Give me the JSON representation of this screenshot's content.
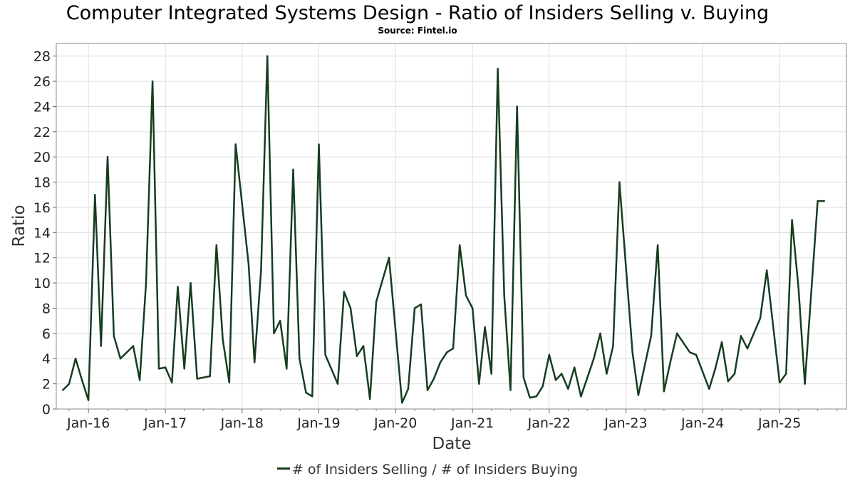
{
  "title": "Computer Integrated Systems Design - Ratio of Insiders Selling v. Buying",
  "subtitle": "Source: Fintel.io",
  "legend": {
    "label": "# of Insiders Selling / # of Insiders Buying",
    "color": "#163d20"
  },
  "chart_data": {
    "type": "line",
    "title": "Computer Integrated Systems Design - Ratio of Insiders Selling v. Buying",
    "subtitle": "Source: Fintel.io",
    "xlabel": "Date",
    "ylabel": "Ratio",
    "ylim": [
      0,
      29
    ],
    "yticks": [
      0,
      2,
      4,
      6,
      8,
      10,
      12,
      14,
      16,
      18,
      20,
      22,
      24,
      26,
      28
    ],
    "xlim": [
      "2015-08-01",
      "2025-11-15"
    ],
    "xticks": [
      {
        "label": "Jan-16",
        "date": "2016-01-01"
      },
      {
        "label": "Jan-17",
        "date": "2017-01-01"
      },
      {
        "label": "Jan-18",
        "date": "2018-01-01"
      },
      {
        "label": "Jan-19",
        "date": "2019-01-01"
      },
      {
        "label": "Jan-20",
        "date": "2020-01-01"
      },
      {
        "label": "Jan-21",
        "date": "2021-01-01"
      },
      {
        "label": "Jan-22",
        "date": "2022-01-01"
      },
      {
        "label": "Jan-23",
        "date": "2023-01-01"
      },
      {
        "label": "Jan-24",
        "date": "2024-01-01"
      },
      {
        "label": "Jan-25",
        "date": "2025-01-01"
      }
    ],
    "grid": true,
    "legend_position": "bottom",
    "series": [
      {
        "name": "# of Insiders Selling / # of Insiders Buying",
        "color": "#163d20",
        "x": [
          "2015-09-01",
          "2015-10-01",
          "2015-11-01",
          "2015-12-01",
          "2016-01-01",
          "2016-02-01",
          "2016-03-01",
          "2016-04-01",
          "2016-05-01",
          "2016-06-01",
          "2016-08-01",
          "2016-09-01",
          "2016-10-01",
          "2016-11-01",
          "2016-12-01",
          "2017-01-01",
          "2017-02-01",
          "2017-03-01",
          "2017-04-01",
          "2017-05-01",
          "2017-06-01",
          "2017-08-01",
          "2017-09-01",
          "2017-10-01",
          "2017-11-01",
          "2017-12-01",
          "2018-02-01",
          "2018-03-01",
          "2018-04-01",
          "2018-05-01",
          "2018-06-01",
          "2018-07-01",
          "2018-08-01",
          "2018-09-01",
          "2018-10-01",
          "2018-11-01",
          "2018-12-01",
          "2019-01-01",
          "2019-02-01",
          "2019-04-01",
          "2019-05-01",
          "2019-06-01",
          "2019-07-01",
          "2019-08-01",
          "2019-09-01",
          "2019-10-01",
          "2019-12-01",
          "2020-02-01",
          "2020-03-01",
          "2020-04-01",
          "2020-05-01",
          "2020-06-01",
          "2020-07-01",
          "2020-08-01",
          "2020-09-01",
          "2020-10-01",
          "2020-11-01",
          "2020-12-01",
          "2021-01-01",
          "2021-02-01",
          "2021-03-01",
          "2021-04-01",
          "2021-05-01",
          "2021-06-01",
          "2021-07-01",
          "2021-08-01",
          "2021-09-01",
          "2021-10-01",
          "2021-11-01",
          "2021-12-01",
          "2022-01-01",
          "2022-02-01",
          "2022-03-01",
          "2022-04-01",
          "2022-05-01",
          "2022-06-01",
          "2022-08-01",
          "2022-09-01",
          "2022-10-01",
          "2022-11-01",
          "2022-12-01",
          "2023-02-01",
          "2023-03-01",
          "2023-05-01",
          "2023-06-01",
          "2023-07-01",
          "2023-08-01",
          "2023-09-01",
          "2023-11-01",
          "2023-12-01",
          "2024-02-01",
          "2024-03-01",
          "2024-04-01",
          "2024-05-01",
          "2024-06-01",
          "2024-07-01",
          "2024-08-01",
          "2024-10-01",
          "2024-11-01",
          "2025-01-01",
          "2025-02-01",
          "2025-03-01",
          "2025-04-01",
          "2025-05-01",
          "2025-07-01",
          "2025-08-01"
        ],
        "values": [
          1.5,
          2.0,
          4.0,
          2.3,
          0.7,
          17.0,
          5.0,
          20.0,
          5.8,
          4.0,
          5.0,
          2.3,
          10.0,
          26.0,
          3.2,
          3.3,
          2.1,
          9.7,
          3.2,
          10.0,
          2.4,
          2.6,
          13.0,
          5.5,
          2.1,
          21.0,
          11.5,
          3.7,
          11.0,
          28.0,
          6.0,
          7.0,
          3.2,
          19.0,
          4.0,
          1.3,
          1.0,
          21.0,
          4.3,
          2.0,
          9.3,
          8.0,
          4.2,
          5.0,
          0.8,
          8.5,
          12.0,
          0.5,
          1.6,
          8.0,
          8.3,
          1.5,
          2.4,
          3.7,
          4.5,
          4.8,
          13.0,
          9.0,
          8.0,
          2.0,
          6.5,
          2.8,
          27.0,
          9.0,
          1.5,
          24.0,
          2.5,
          0.9,
          1.0,
          1.8,
          4.3,
          2.3,
          2.8,
          1.6,
          3.3,
          1.0,
          4.0,
          6.0,
          2.8,
          5.0,
          18.0,
          4.5,
          1.1,
          5.8,
          13.0,
          1.4,
          3.8,
          6.0,
          4.5,
          4.3,
          1.6,
          3.2,
          5.3,
          2.2,
          2.8,
          5.8,
          4.8,
          7.2,
          11.0,
          2.1,
          2.8,
          15.0,
          9.6,
          2.0,
          16.5,
          16.5
        ]
      }
    ]
  }
}
